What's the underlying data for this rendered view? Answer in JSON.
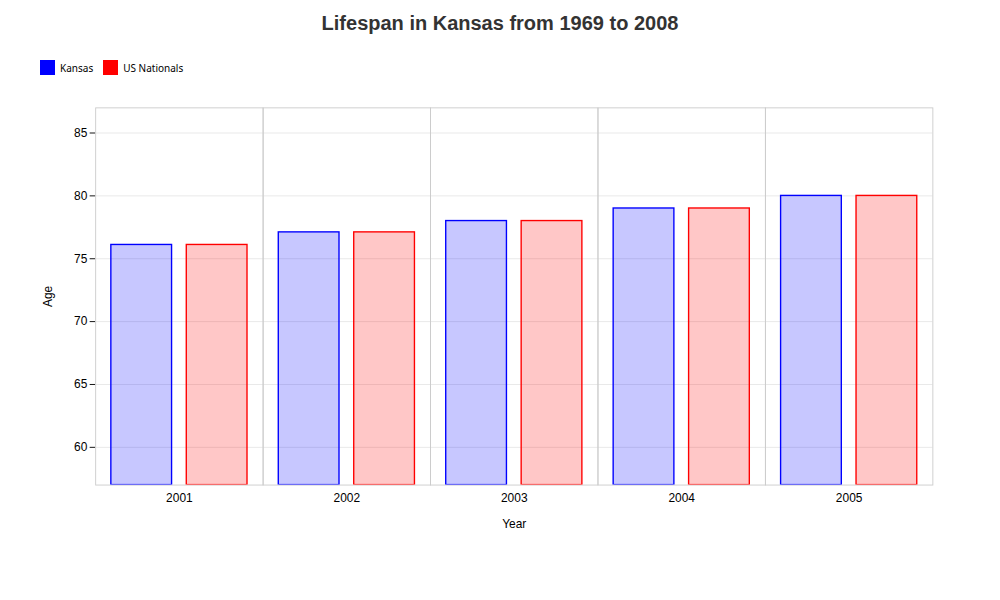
{
  "chart_data": {
    "type": "bar",
    "title": "Lifespan in Kansas from 1969 to 2008",
    "x_label": "Year",
    "y_label": "Age",
    "categories": [
      "2001",
      "2002",
      "2003",
      "2004",
      "2005"
    ],
    "series": [
      {
        "name": "Kansas",
        "color": "#0000ff",
        "values": [
          76.1,
          77.1,
          78.0,
          79.0,
          80.0
        ]
      },
      {
        "name": "US Nationals",
        "color": "#ff0000",
        "values": [
          76.1,
          77.1,
          78.0,
          79.0,
          80.0
        ]
      }
    ],
    "ylim": [
      57,
      87
    ],
    "yticks": [
      60,
      65,
      70,
      75,
      80,
      85
    ],
    "grid": true,
    "legend": "top"
  }
}
